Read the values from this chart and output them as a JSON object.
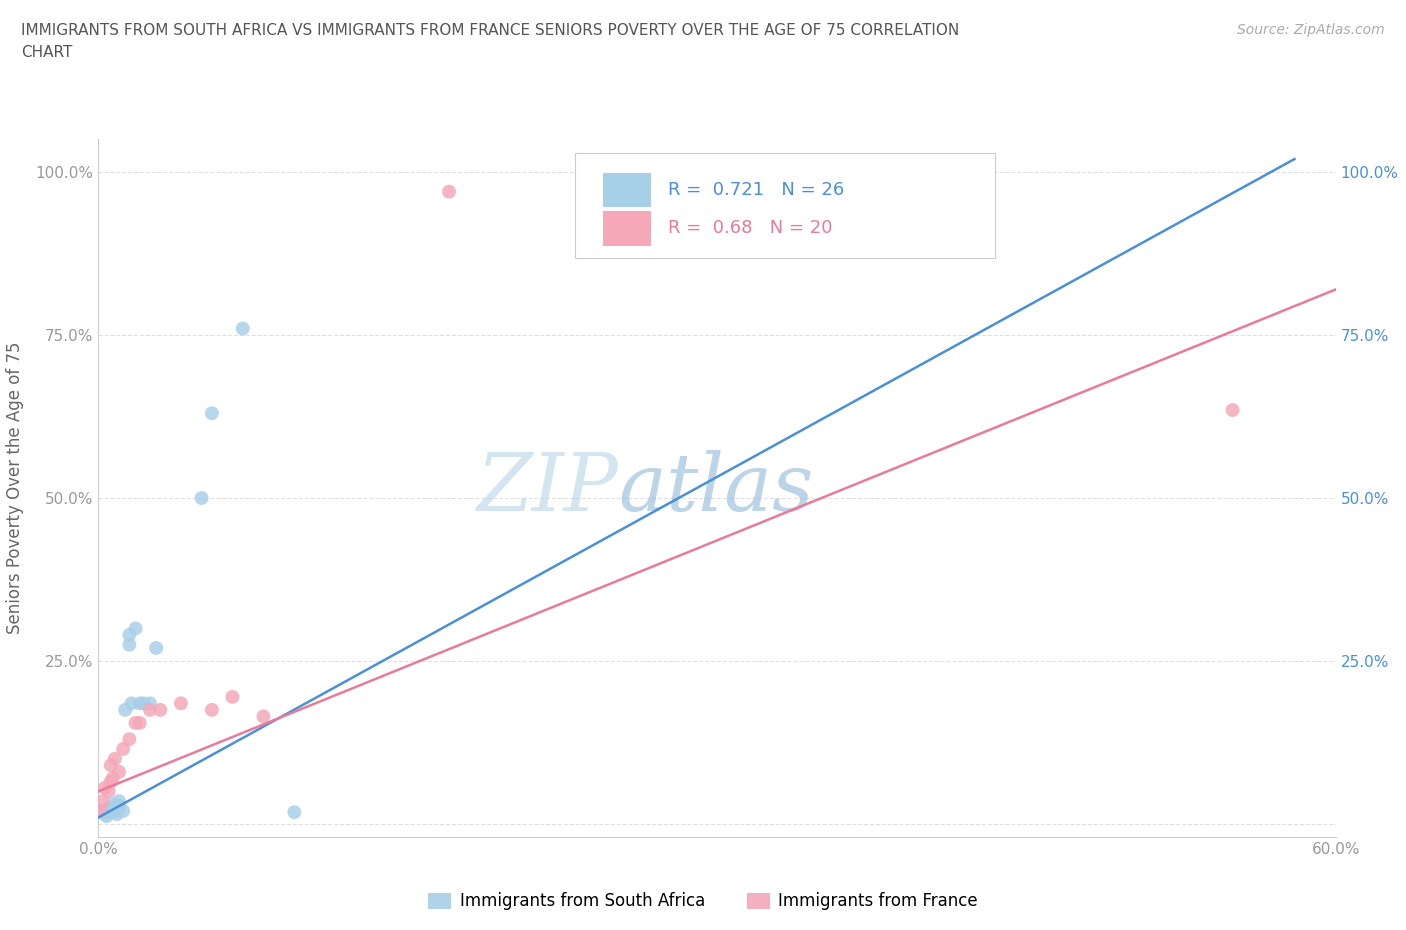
{
  "title_line1": "IMMIGRANTS FROM SOUTH AFRICA VS IMMIGRANTS FROM FRANCE SENIORS POVERTY OVER THE AGE OF 75 CORRELATION",
  "title_line2": "CHART",
  "source": "Source: ZipAtlas.com",
  "ylabel": "Seniors Poverty Over the Age of 75",
  "xlim": [
    0.0,
    0.6
  ],
  "ylim": [
    -0.02,
    1.05
  ],
  "xticks": [
    0.0,
    0.1,
    0.2,
    0.3,
    0.4,
    0.5,
    0.6
  ],
  "xticklabels": [
    "0.0%",
    "",
    "",
    "",
    "",
    "",
    "60.0%"
  ],
  "yticks": [
    0.0,
    0.25,
    0.5,
    0.75,
    1.0
  ],
  "yticklabels": [
    "",
    "25.0%",
    "50.0%",
    "75.0%",
    "100.0%"
  ],
  "blue_R": 0.721,
  "blue_N": 26,
  "pink_R": 0.68,
  "pink_N": 20,
  "blue_color": "#a8cfe8",
  "pink_color": "#f4a8b8",
  "blue_line_color": "#4a90d9",
  "pink_line_color": "#e87a9a",
  "watermark_zip": "ZIP",
  "watermark_atlas": "atlas",
  "blue_scatter_x": [
    0.001,
    0.003,
    0.004,
    0.005,
    0.006,
    0.006,
    0.007,
    0.008,
    0.009,
    0.01,
    0.01,
    0.01,
    0.012,
    0.013,
    0.015,
    0.015,
    0.016,
    0.018,
    0.02,
    0.022,
    0.025,
    0.028,
    0.05,
    0.055,
    0.07,
    0.095
  ],
  "blue_scatter_y": [
    0.02,
    0.015,
    0.012,
    0.025,
    0.018,
    0.022,
    0.03,
    0.02,
    0.015,
    0.025,
    0.028,
    0.035,
    0.02,
    0.175,
    0.275,
    0.29,
    0.185,
    0.3,
    0.185,
    0.185,
    0.185,
    0.27,
    0.5,
    0.63,
    0.76,
    0.018
  ],
  "pink_scatter_x": [
    0.001,
    0.002,
    0.003,
    0.005,
    0.006,
    0.006,
    0.007,
    0.008,
    0.01,
    0.012,
    0.015,
    0.018,
    0.02,
    0.025,
    0.03,
    0.04,
    0.055,
    0.065,
    0.08,
    0.55
  ],
  "pink_scatter_y": [
    0.02,
    0.035,
    0.055,
    0.05,
    0.065,
    0.09,
    0.07,
    0.1,
    0.08,
    0.115,
    0.13,
    0.155,
    0.155,
    0.175,
    0.175,
    0.185,
    0.175,
    0.195,
    0.165,
    0.635
  ],
  "pink_outlier_x": [
    0.17
  ],
  "pink_outlier_y": [
    0.97
  ],
  "blue_line_x0": 0.0,
  "blue_line_y0": 0.01,
  "blue_line_x1": 0.58,
  "blue_line_y1": 1.02,
  "pink_line_x0": 0.0,
  "pink_line_y0": 0.05,
  "pink_line_x1": 0.6,
  "pink_line_y1": 0.82,
  "legend_blue_label": "Immigrants from South Africa",
  "legend_pink_label": "Immigrants from France"
}
